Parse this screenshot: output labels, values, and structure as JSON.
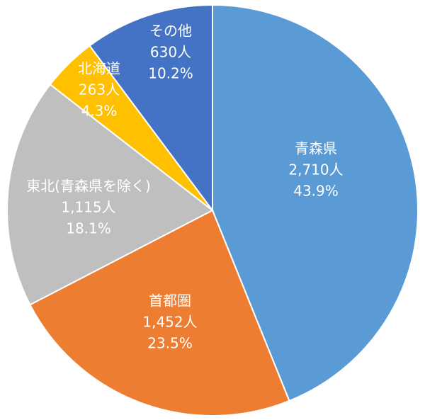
{
  "chart_data": {
    "type": "pie",
    "title": "",
    "start_angle_deg": 0,
    "direction": "clockwise",
    "slices": [
      {
        "label": "青森県",
        "count": "2,710人",
        "percent_label": "43.9%",
        "value": 43.9,
        "color": "#5B9BD5",
        "text_color": "#ffffff"
      },
      {
        "label": "首都圏",
        "count": "1,452人",
        "percent_label": "23.5%",
        "value": 23.5,
        "color": "#ED7D31",
        "text_color": "#ffffff"
      },
      {
        "label": "東北(青森県を除く)",
        "count": "1,115人",
        "percent_label": "18.1%",
        "value": 18.1,
        "color": "#BFBFBF",
        "text_color": "#ffffff"
      },
      {
        "label": "北海道",
        "count": "263人",
        "percent_label": "4.3%",
        "value": 4.3,
        "color": "#FFC000",
        "text_color": "#ffffff"
      },
      {
        "label": "その他",
        "count": "630人",
        "percent_label": "10.2%",
        "value": 10.2,
        "color": "#4472C4",
        "text_color": "#ffffff"
      }
    ]
  }
}
